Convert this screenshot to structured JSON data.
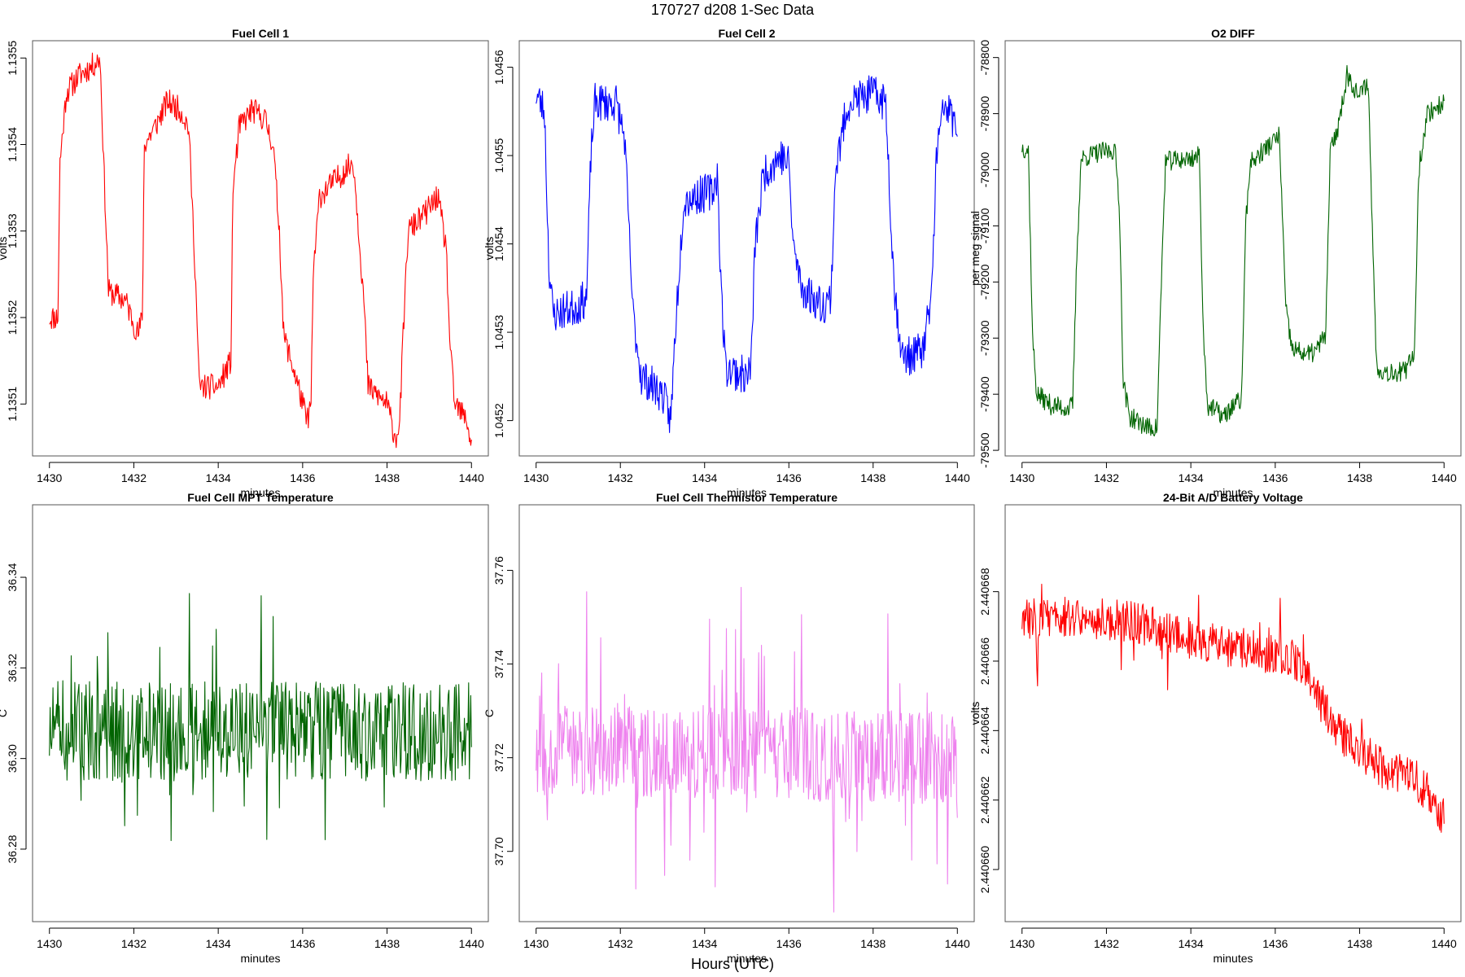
{
  "figure": {
    "title": "170727   d208   1-Sec Data",
    "outer_xlabel": "Hours (UTC)"
  },
  "chart_data": [
    {
      "type": "line",
      "title": "Fuel Cell 1",
      "xlabel": "minutes",
      "ylabel": "volts",
      "color": "#ff0000",
      "xlim": [
        1429.6,
        1440.4
      ],
      "ylim": [
        1.13504,
        1.13552
      ],
      "x_ticks": [
        1430,
        1432,
        1434,
        1436,
        1438,
        1440
      ],
      "x_tick_labels": [
        "1430",
        "1432",
        "1434",
        "1436",
        "1438",
        "1440"
      ],
      "y_ticks": [
        1.1351,
        1.1352,
        1.1353,
        1.1354,
        1.1355
      ],
      "y_tick_labels": [
        "1.1351",
        "1.1352",
        "1.1353",
        "1.1354",
        "1.1355"
      ],
      "segments": [
        [
          1430.0,
          1.1352
        ],
        [
          1430.2,
          1.1352
        ],
        [
          1430.25,
          1.13538
        ],
        [
          1430.4,
          1.13546
        ],
        [
          1430.7,
          1.13548
        ],
        [
          1431.0,
          1.13549
        ],
        [
          1431.2,
          1.1355
        ],
        [
          1431.3,
          1.13536
        ],
        [
          1431.4,
          1.13523
        ],
        [
          1431.8,
          1.13522
        ],
        [
          1432.1,
          1.13518
        ],
        [
          1432.2,
          1.1352
        ],
        [
          1432.25,
          1.1354
        ],
        [
          1432.5,
          1.13542
        ],
        [
          1432.8,
          1.13545
        ],
        [
          1433.1,
          1.13544
        ],
        [
          1433.3,
          1.13542
        ],
        [
          1433.45,
          1.13526
        ],
        [
          1433.55,
          1.13512
        ],
        [
          1434.0,
          1.13512
        ],
        [
          1434.2,
          1.13514
        ],
        [
          1434.3,
          1.13515
        ],
        [
          1434.35,
          1.13535
        ],
        [
          1434.5,
          1.13542
        ],
        [
          1434.8,
          1.13544
        ],
        [
          1435.1,
          1.13543
        ],
        [
          1435.3,
          1.1354
        ],
        [
          1435.45,
          1.1353
        ],
        [
          1435.55,
          1.13518
        ],
        [
          1435.9,
          1.13512
        ],
        [
          1436.1,
          1.13508
        ],
        [
          1436.2,
          1.1351
        ],
        [
          1436.25,
          1.13525
        ],
        [
          1436.4,
          1.13534
        ],
        [
          1436.8,
          1.13536
        ],
        [
          1437.2,
          1.13538
        ],
        [
          1437.3,
          1.13532
        ],
        [
          1437.45,
          1.13522
        ],
        [
          1437.55,
          1.13512
        ],
        [
          1438.0,
          1.1351
        ],
        [
          1438.2,
          1.13506
        ],
        [
          1438.3,
          1.13508
        ],
        [
          1438.4,
          1.1352
        ],
        [
          1438.5,
          1.1353
        ],
        [
          1438.9,
          1.13532
        ],
        [
          1439.2,
          1.13534
        ],
        [
          1439.4,
          1.13528
        ],
        [
          1439.5,
          1.13516
        ],
        [
          1439.6,
          1.1351
        ],
        [
          1439.9,
          1.13508
        ],
        [
          1440.0,
          1.13505
        ]
      ],
      "noise": 1.5e-05,
      "seed": 11
    },
    {
      "type": "line",
      "title": "Fuel Cell 2",
      "xlabel": "minutes",
      "ylabel": "volts",
      "color": "#0000ff",
      "xlim": [
        1429.6,
        1440.4
      ],
      "ylim": [
        1.04516,
        1.04563
      ],
      "x_ticks": [
        1430,
        1432,
        1434,
        1436,
        1438,
        1440
      ],
      "x_tick_labels": [
        "1430",
        "1432",
        "1434",
        "1436",
        "1438",
        "1440"
      ],
      "y_ticks": [
        1.0452,
        1.0453,
        1.0454,
        1.0455,
        1.0456
      ],
      "y_tick_labels": [
        "1.0452",
        "1.0453",
        "1.0454",
        "1.0455",
        "1.0456"
      ],
      "segments": [
        [
          1430.0,
          1.04557
        ],
        [
          1430.2,
          1.04555
        ],
        [
          1430.3,
          1.04538
        ],
        [
          1430.4,
          1.04532
        ],
        [
          1431.0,
          1.04533
        ],
        [
          1431.2,
          1.04534
        ],
        [
          1431.3,
          1.0455
        ],
        [
          1431.4,
          1.04556
        ],
        [
          1431.9,
          1.04556
        ],
        [
          1432.1,
          1.04552
        ],
        [
          1432.3,
          1.04532
        ],
        [
          1432.5,
          1.04525
        ],
        [
          1433.0,
          1.04523
        ],
        [
          1433.2,
          1.0452
        ],
        [
          1433.3,
          1.0453
        ],
        [
          1433.5,
          1.04545
        ],
        [
          1434.2,
          1.04546
        ],
        [
          1434.3,
          1.04548
        ],
        [
          1434.4,
          1.04534
        ],
        [
          1434.5,
          1.04526
        ],
        [
          1435.0,
          1.04525
        ],
        [
          1435.1,
          1.04526
        ],
        [
          1435.2,
          1.0454
        ],
        [
          1435.4,
          1.04548
        ],
        [
          1435.8,
          1.0455
        ],
        [
          1436.0,
          1.04549
        ],
        [
          1436.1,
          1.0454
        ],
        [
          1436.3,
          1.04535
        ],
        [
          1436.8,
          1.04533
        ],
        [
          1437.0,
          1.04534
        ],
        [
          1437.1,
          1.04548
        ],
        [
          1437.4,
          1.04556
        ],
        [
          1438.0,
          1.04557
        ],
        [
          1438.3,
          1.04556
        ],
        [
          1438.5,
          1.04535
        ],
        [
          1438.7,
          1.04527
        ],
        [
          1439.2,
          1.04528
        ],
        [
          1439.4,
          1.04535
        ],
        [
          1439.5,
          1.0455
        ],
        [
          1439.7,
          1.04556
        ],
        [
          1440.0,
          1.04553
        ]
      ],
      "noise": 2.2e-05,
      "seed": 23
    },
    {
      "type": "line",
      "title": "O2 DIFF",
      "xlabel": "minutes",
      "ylabel": "per meg signal",
      "color": "#006400",
      "xlim": [
        1429.6,
        1440.4
      ],
      "ylim": [
        -79510,
        -78770
      ],
      "x_ticks": [
        1430,
        1432,
        1434,
        1436,
        1438,
        1440
      ],
      "x_tick_labels": [
        "1430",
        "1432",
        "1434",
        "1436",
        "1438",
        "1440"
      ],
      "y_ticks": [
        -79500,
        -79400,
        -79300,
        -79200,
        -79100,
        -79000,
        -78900,
        -78800
      ],
      "y_tick_labels": [
        "-79500",
        "-79400",
        "-79300",
        "-79200",
        "-79100",
        "-79000",
        "-78900",
        "-78800"
      ],
      "segments": [
        [
          1430.0,
          -78960
        ],
        [
          1430.15,
          -78965
        ],
        [
          1430.25,
          -79300
        ],
        [
          1430.35,
          -79400
        ],
        [
          1430.7,
          -79420
        ],
        [
          1431.1,
          -79425
        ],
        [
          1431.2,
          -79420
        ],
        [
          1431.3,
          -79150
        ],
        [
          1431.4,
          -78980
        ],
        [
          1431.8,
          -78970
        ],
        [
          1432.2,
          -78965
        ],
        [
          1432.3,
          -79050
        ],
        [
          1432.4,
          -79380
        ],
        [
          1432.55,
          -79440
        ],
        [
          1433.0,
          -79460
        ],
        [
          1433.2,
          -79460
        ],
        [
          1433.3,
          -79200
        ],
        [
          1433.4,
          -78985
        ],
        [
          1434.0,
          -78980
        ],
        [
          1434.2,
          -78975
        ],
        [
          1434.3,
          -79300
        ],
        [
          1434.4,
          -79420
        ],
        [
          1434.8,
          -79440
        ],
        [
          1435.0,
          -79420
        ],
        [
          1435.2,
          -79410
        ],
        [
          1435.3,
          -79100
        ],
        [
          1435.4,
          -78990
        ],
        [
          1435.8,
          -78960
        ],
        [
          1436.1,
          -78940
        ],
        [
          1436.25,
          -79250
        ],
        [
          1436.4,
          -79320
        ],
        [
          1436.8,
          -79330
        ],
        [
          1437.0,
          -79320
        ],
        [
          1437.2,
          -79290
        ],
        [
          1437.3,
          -78970
        ],
        [
          1437.5,
          -78920
        ],
        [
          1437.7,
          -78830
        ],
        [
          1438.0,
          -78870
        ],
        [
          1438.2,
          -78840
        ],
        [
          1438.3,
          -79100
        ],
        [
          1438.4,
          -79350
        ],
        [
          1438.6,
          -79360
        ],
        [
          1439.1,
          -79360
        ],
        [
          1439.3,
          -79320
        ],
        [
          1439.4,
          -79000
        ],
        [
          1439.6,
          -78900
        ],
        [
          1439.8,
          -78890
        ],
        [
          1440.0,
          -78880
        ]
      ],
      "noise": 18,
      "seed": 37
    },
    {
      "type": "line",
      "title": "Fuel Cell MPT Temperature",
      "xlabel": "minutes",
      "ylabel": "C",
      "color": "#006400",
      "xlim": [
        1429.6,
        1440.4
      ],
      "ylim": [
        36.264,
        36.356
      ],
      "x_ticks": [
        1430,
        1432,
        1434,
        1436,
        1438,
        1440
      ],
      "x_tick_labels": [
        "1430",
        "1432",
        "1434",
        "1436",
        "1438",
        "1440"
      ],
      "y_ticks": [
        36.28,
        36.3,
        36.32,
        36.34
      ],
      "y_tick_labels": [
        "36.28",
        "36.30",
        "36.32",
        "36.34"
      ],
      "segments": [
        [
          1430.0,
          36.306
        ],
        [
          1440.0,
          36.306
        ]
      ],
      "noise": 0.011,
      "seed": 51,
      "spike_chance": 0.08,
      "spike_amp": 0.028
    },
    {
      "type": "line",
      "title": "Fuel Cell Thermistor Temperature",
      "xlabel": "minutes",
      "ylabel": "C",
      "color": "#ee82ee",
      "xlim": [
        1429.6,
        1440.4
      ],
      "ylim": [
        37.685,
        37.774
      ],
      "x_ticks": [
        1430,
        1432,
        1434,
        1436,
        1438,
        1440
      ],
      "x_tick_labels": [
        "1430",
        "1432",
        "1434",
        "1436",
        "1438",
        "1440"
      ],
      "y_ticks": [
        37.7,
        37.72,
        37.74,
        37.76
      ],
      "y_tick_labels": [
        "37.70",
        "37.72",
        "37.74",
        "37.76"
      ],
      "segments": [
        [
          1430.0,
          37.722
        ],
        [
          1440.0,
          37.72
        ]
      ],
      "noise": 0.01,
      "seed": 67,
      "spike_chance": 0.08,
      "spike_amp": 0.028
    },
    {
      "type": "line",
      "title": "24-Bit A/D Battery Voltage",
      "xlabel": "minutes",
      "ylabel": "volts",
      "color": "#ff0000",
      "xlim": [
        1429.6,
        1440.4
      ],
      "ylim": [
        2.4406585,
        2.4406705
      ],
      "x_ticks": [
        1430,
        1432,
        1434,
        1436,
        1438,
        1440
      ],
      "x_tick_labels": [
        "1430",
        "1432",
        "1434",
        "1436",
        "1438",
        "1440"
      ],
      "y_ticks": [
        2.44066,
        2.440662,
        2.440664,
        2.440666,
        2.440668
      ],
      "y_tick_labels": [
        "2.440660",
        "2.440662",
        "2.440664",
        "2.440666",
        "2.440668"
      ],
      "segments": [
        [
          1430.0,
          2.4406672
        ],
        [
          1431.0,
          2.4406673
        ],
        [
          1432.0,
          2.4406672
        ],
        [
          1432.8,
          2.4406671
        ],
        [
          1433.5,
          2.4406668
        ],
        [
          1434.5,
          2.4406665
        ],
        [
          1435.5,
          2.4406663
        ],
        [
          1436.5,
          2.440666
        ],
        [
          1437.0,
          2.440665
        ],
        [
          1437.5,
          2.440664
        ],
        [
          1438.0,
          2.4406634
        ],
        [
          1438.7,
          2.4406628
        ],
        [
          1439.3,
          2.4406626
        ],
        [
          1439.8,
          2.440662
        ],
        [
          1440.0,
          2.4406614
        ]
      ],
      "noise": 6e-07,
      "seed": 83,
      "spike_chance": 0.05,
      "spike_amp": 1.5e-06
    }
  ]
}
